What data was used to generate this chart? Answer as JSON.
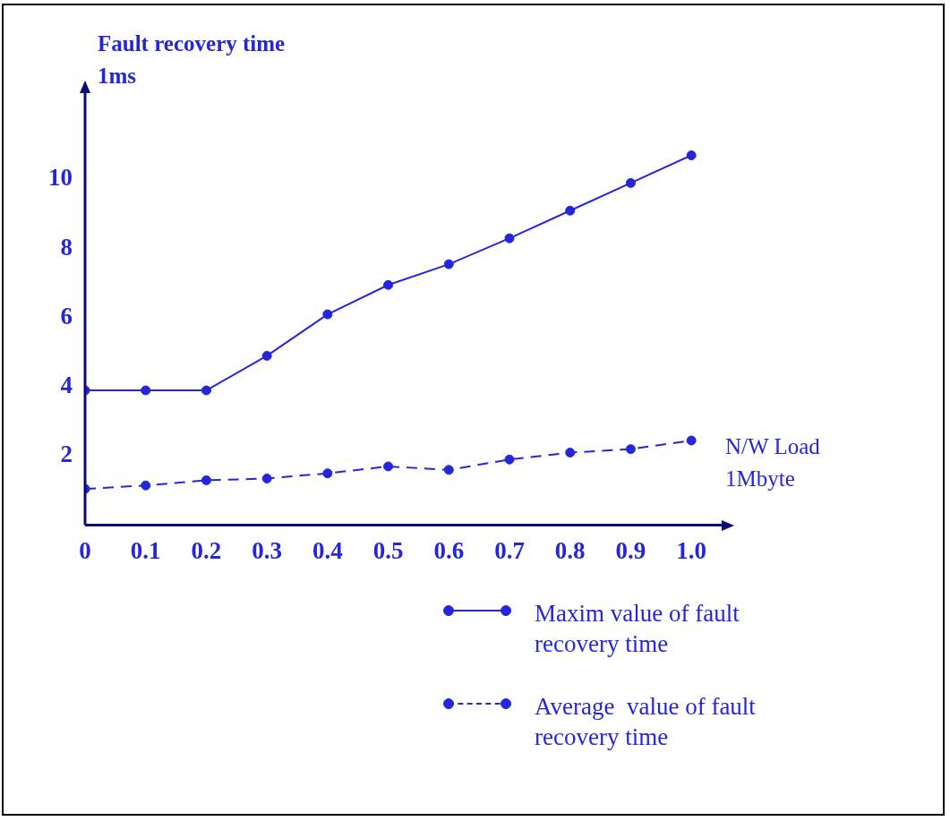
{
  "chart_data": {
    "type": "line",
    "ylabel": "Fault recovery time\n1ms",
    "xlabel": "N/W Load\n1Mbyte",
    "x": [
      0,
      0.1,
      0.2,
      0.3,
      0.4,
      0.5,
      0.6,
      0.7,
      0.8,
      0.9,
      1.0
    ],
    "xlim": [
      0,
      1.05
    ],
    "xticks": [
      0,
      0.1,
      0.2,
      0.3,
      0.4,
      0.5,
      0.6,
      0.7,
      0.8,
      0.9,
      {
        "value": 1,
        "label": "1.0"
      }
    ],
    "ylim": [
      0,
      12.5
    ],
    "yticks": [
      2,
      4,
      6,
      8,
      10
    ],
    "grid": false,
    "legend": "bottom right",
    "marker": "circle",
    "series": [
      {
        "name": "Maxim value of fault recovery time",
        "color": "#2626d9",
        "line_style": "solid",
        "values": [
          3.9,
          3.9,
          3.9,
          4.9,
          6.1,
          6.95,
          7.55,
          8.3,
          9.1,
          9.9,
          10.7
        ]
      },
      {
        "name": "Average  value of fault recovery time",
        "color": "#2626d9",
        "line_style": "dashed",
        "values": [
          1.05,
          1.15,
          1.3,
          1.35,
          1.5,
          1.7,
          1.6,
          1.9,
          2.1,
          2.2,
          2.45
        ]
      }
    ]
  }
}
